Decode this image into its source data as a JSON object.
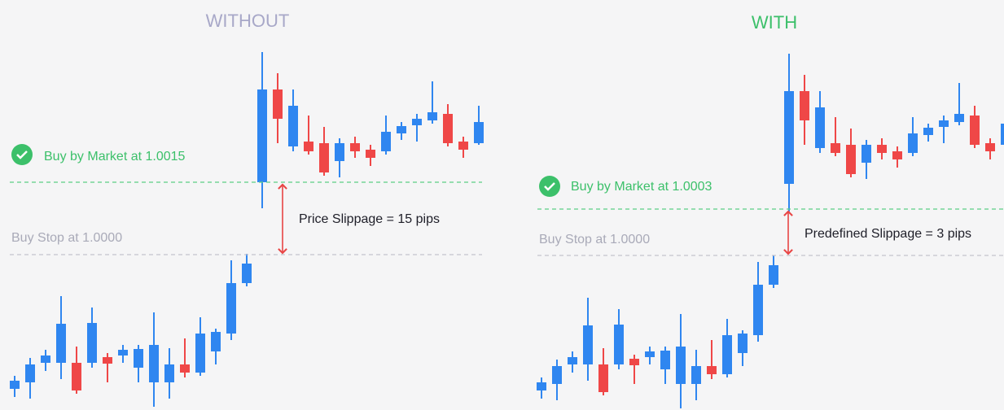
{
  "panels": [
    {
      "title": "WITHOUT",
      "market_label": "Buy by Market at 1.0015",
      "stop_label": "Buy Stop at 1.0000",
      "slippage_label": "Price Slippage = 15 pips"
    },
    {
      "title": "WITH",
      "market_label": "Buy by Market at 1.0003",
      "stop_label": "Buy Stop at 1.0000",
      "slippage_label": "Predefined Slippage = 3 pips"
    }
  ]
}
